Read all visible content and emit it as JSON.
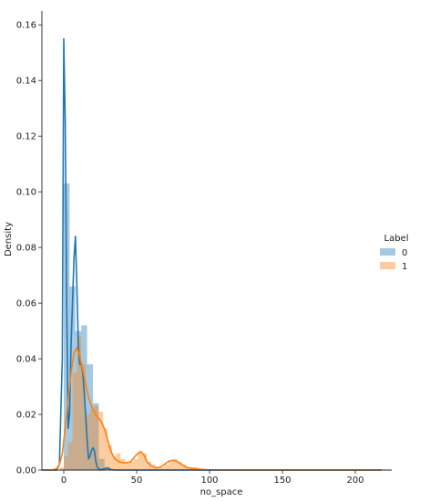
{
  "chart_data": {
    "type": "area",
    "xlabel": "no_space",
    "ylabel": "Density",
    "xlim": [
      -15,
      225
    ],
    "ylim": [
      0,
      0.165
    ],
    "xticks": [
      0,
      50,
      100,
      150,
      200
    ],
    "yticks": [
      0.0,
      0.02,
      0.04,
      0.06,
      0.08,
      0.1,
      0.12,
      0.14,
      0.16
    ],
    "grid": false,
    "legend": {
      "title": "Label",
      "placement": "right",
      "entries": [
        "0",
        "1"
      ]
    },
    "colors": {
      "series_0": "#1f77b4",
      "series_1": "#ff7f0e"
    },
    "histograms": [
      {
        "name": "0",
        "bin_width": 4,
        "bins": [
          {
            "x": 0,
            "density": 0.103
          },
          {
            "x": 4,
            "density": 0.066
          },
          {
            "x": 8,
            "density": 0.05
          },
          {
            "x": 12,
            "density": 0.052
          },
          {
            "x": 16,
            "density": 0.038
          },
          {
            "x": 20,
            "density": 0.024
          },
          {
            "x": 24,
            "density": 0.004
          },
          {
            "x": 28,
            "density": 0.001
          }
        ]
      },
      {
        "name": "1",
        "bin_width": 3,
        "bins": [
          {
            "x": -3,
            "density": 0.001
          },
          {
            "x": 0,
            "density": 0.005
          },
          {
            "x": 3,
            "density": 0.01
          },
          {
            "x": 6,
            "density": 0.035
          },
          {
            "x": 9,
            "density": 0.048
          },
          {
            "x": 12,
            "density": 0.038
          },
          {
            "x": 15,
            "density": 0.02
          },
          {
            "x": 18,
            "density": 0.022
          },
          {
            "x": 21,
            "density": 0.023
          },
          {
            "x": 24,
            "density": 0.021
          },
          {
            "x": 27,
            "density": 0.015
          },
          {
            "x": 30,
            "density": 0.009
          },
          {
            "x": 33,
            "density": 0.005
          },
          {
            "x": 36,
            "density": 0.006
          },
          {
            "x": 39,
            "density": 0.004
          },
          {
            "x": 42,
            "density": 0.003
          },
          {
            "x": 45,
            "density": 0.003
          },
          {
            "x": 48,
            "density": 0.004
          },
          {
            "x": 51,
            "density": 0.007
          },
          {
            "x": 54,
            "density": 0.006
          },
          {
            "x": 57,
            "density": 0.003
          },
          {
            "x": 60,
            "density": 0.002
          },
          {
            "x": 63,
            "density": 0.001
          },
          {
            "x": 66,
            "density": 0.001
          },
          {
            "x": 69,
            "density": 0.002
          },
          {
            "x": 72,
            "density": 0.003
          },
          {
            "x": 75,
            "density": 0.004
          },
          {
            "x": 78,
            "density": 0.003
          },
          {
            "x": 81,
            "density": 0.002
          },
          {
            "x": 84,
            "density": 0.001
          },
          {
            "x": 87,
            "density": 0.001
          },
          {
            "x": 90,
            "density": 0.001
          },
          {
            "x": 93,
            "density": 0.0005
          },
          {
            "x": 96,
            "density": 0.0003
          }
        ]
      }
    ],
    "kde": [
      {
        "name": "0",
        "points": [
          [
            -15,
            0
          ],
          [
            -5,
            0
          ],
          [
            -3,
            0.002
          ],
          [
            -1,
            0.04
          ],
          [
            0,
            0.155
          ],
          [
            1,
            0.125
          ],
          [
            2,
            0.06
          ],
          [
            3,
            0.015
          ],
          [
            4,
            0.02
          ],
          [
            5,
            0.045
          ],
          [
            6,
            0.06
          ],
          [
            7,
            0.076
          ],
          [
            8,
            0.084
          ],
          [
            9,
            0.066
          ],
          [
            10,
            0.045
          ],
          [
            11,
            0.038
          ],
          [
            12,
            0.038
          ],
          [
            13,
            0.035
          ],
          [
            14,
            0.028
          ],
          [
            15,
            0.02
          ],
          [
            16,
            0.011
          ],
          [
            17,
            0.004
          ],
          [
            18,
            0.005
          ],
          [
            19,
            0.007
          ],
          [
            20,
            0.008
          ],
          [
            21,
            0.007
          ],
          [
            22,
            0.003
          ],
          [
            23,
            0.001
          ],
          [
            25,
            0.0
          ],
          [
            30,
            0.0008
          ],
          [
            32,
            0.0002
          ],
          [
            35,
            0
          ],
          [
            100,
            0
          ],
          [
            218,
            0
          ]
        ]
      },
      {
        "name": "1",
        "points": [
          [
            -15,
            0
          ],
          [
            -8,
            0
          ],
          [
            -5,
            0.0005
          ],
          [
            -3,
            0.002
          ],
          [
            -1,
            0.006
          ],
          [
            1,
            0.015
          ],
          [
            3,
            0.025
          ],
          [
            5,
            0.035
          ],
          [
            7,
            0.042
          ],
          [
            9,
            0.044
          ],
          [
            11,
            0.041
          ],
          [
            13,
            0.036
          ],
          [
            15,
            0.031
          ],
          [
            17,
            0.026
          ],
          [
            19,
            0.023
          ],
          [
            21,
            0.021
          ],
          [
            23,
            0.019
          ],
          [
            25,
            0.018
          ],
          [
            27,
            0.016
          ],
          [
            29,
            0.013
          ],
          [
            31,
            0.009
          ],
          [
            33,
            0.006
          ],
          [
            35,
            0.004
          ],
          [
            38,
            0.003
          ],
          [
            42,
            0.0025
          ],
          [
            46,
            0.003
          ],
          [
            49,
            0.005
          ],
          [
            51,
            0.006
          ],
          [
            53,
            0.0065
          ],
          [
            55,
            0.0055
          ],
          [
            57,
            0.003
          ],
          [
            60,
            0.0015
          ],
          [
            63,
            0.0008
          ],
          [
            66,
            0.001
          ],
          [
            69,
            0.002
          ],
          [
            72,
            0.0032
          ],
          [
            75,
            0.0035
          ],
          [
            78,
            0.003
          ],
          [
            81,
            0.002
          ],
          [
            84,
            0.001
          ],
          [
            88,
            0.0006
          ],
          [
            92,
            0.0003
          ],
          [
            98,
            0.0001
          ],
          [
            105,
            0
          ],
          [
            218,
            0
          ]
        ]
      }
    ]
  }
}
